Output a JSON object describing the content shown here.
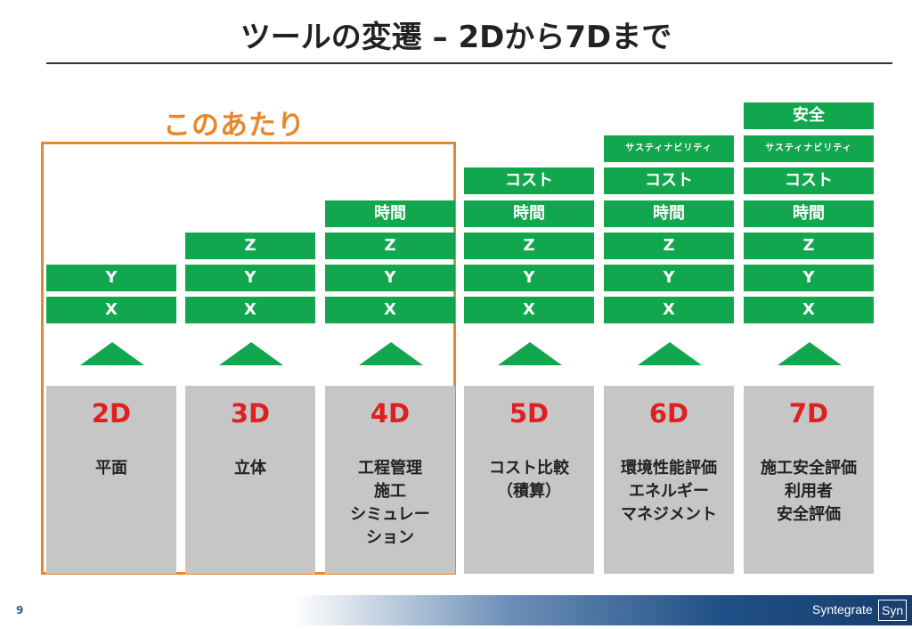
{
  "title": "ツールの変遷 – 2Dから7Dまで",
  "highlight_label": "このあたり",
  "columns": [
    {
      "heading": "2D",
      "description": [
        "平面"
      ],
      "stack": [
        "Y",
        "X"
      ]
    },
    {
      "heading": "3D",
      "description": [
        "立体"
      ],
      "stack": [
        "Z",
        "Y",
        "X"
      ]
    },
    {
      "heading": "4D",
      "description": [
        "工程管理",
        "施工",
        "シミュレー",
        "ション"
      ],
      "stack": [
        "時間",
        "Z",
        "Y",
        "X"
      ]
    },
    {
      "heading": "5D",
      "description": [
        "コスト比較",
        "（積算）"
      ],
      "stack": [
        "コスト",
        "時間",
        "Z",
        "Y",
        "X"
      ]
    },
    {
      "heading": "6D",
      "description": [
        "環境性能評価",
        "エネルギー",
        "マネジメント"
      ],
      "stack": [
        "サスティナビリティ",
        "コスト",
        "時間",
        "Z",
        "Y",
        "X"
      ]
    },
    {
      "heading": "7D",
      "description": [
        "施工安全評価",
        "利用者",
        "安全評価"
      ],
      "stack": [
        "安全",
        "サスティナビリティ",
        "コスト",
        "時間",
        "Z",
        "Y",
        "X"
      ]
    }
  ],
  "footer": {
    "page_number": "9",
    "brand": "Syntegrate",
    "brand_mark": "Syn"
  },
  "colors": {
    "green": "#12a64e",
    "orange": "#e8872a",
    "red": "#e02020",
    "gray_panel": "#c6c6c6",
    "footer_blue": "#1f4f86"
  }
}
